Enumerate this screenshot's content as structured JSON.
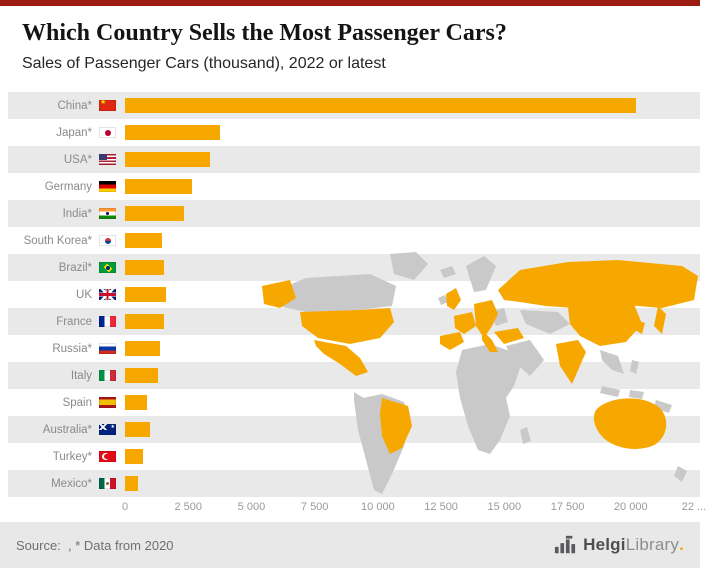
{
  "chart_data": {
    "type": "bar",
    "orientation": "horizontal",
    "title": "Which Country Sells the Most Passenger Cars?",
    "subtitle": "Sales of Passenger Cars (thousand), 2022 or latest",
    "categories": [
      "China*",
      "Japan*",
      "USA*",
      "Germany",
      "India*",
      "South Korea*",
      "Brazil*",
      "UK",
      "France",
      "Russia*",
      "Italy",
      "Spain",
      "Australia*",
      "Turkey*",
      "Mexico*"
    ],
    "values": [
      20200,
      3750,
      3350,
      2650,
      2350,
      1480,
      1560,
      1610,
      1530,
      1390,
      1320,
      870,
      990,
      710,
      520
    ],
    "flags": [
      "cn",
      "jp",
      "us",
      "de",
      "in",
      "kr",
      "br",
      "gb",
      "fr",
      "ru",
      "it",
      "es",
      "au",
      "tr",
      "mx"
    ],
    "xlabel": "",
    "ylabel": "",
    "xlim": [
      0,
      22500
    ],
    "xticks": [
      {
        "value": 0,
        "label": "0"
      },
      {
        "value": 2500,
        "label": "2 500"
      },
      {
        "value": 5000,
        "label": "5 000"
      },
      {
        "value": 7500,
        "label": "7 500"
      },
      {
        "value": 10000,
        "label": "10 000"
      },
      {
        "value": 12500,
        "label": "12 500"
      },
      {
        "value": 15000,
        "label": "15 000"
      },
      {
        "value": 17500,
        "label": "17 500"
      },
      {
        "value": 20000,
        "label": "20 000"
      },
      {
        "value": 22500,
        "label": "22 ..."
      }
    ],
    "grid": false,
    "legend": "none",
    "value_unit": "thousand passenger cars",
    "bar_color": "#F6A800",
    "stripe_color": "#e9e9e9"
  },
  "map": {
    "base_color": "#c9c9c9",
    "highlight_color": "#F6A800",
    "highlighted_regions": [
      "USA (incl. Alaska)",
      "Mexico",
      "Brazil",
      "UK",
      "France",
      "Spain",
      "Central Europe",
      "Italy",
      "Russia",
      "Turkey",
      "India",
      "China",
      "South Korea",
      "Japan",
      "Australia"
    ]
  },
  "footer": {
    "source": "Source:  , * Data from 2020",
    "logo": {
      "part1": "Helgi",
      "part2": "Library",
      "dot": "."
    }
  },
  "colors": {
    "top_bar": "#9b1c10",
    "accent": "#F6A800",
    "footer_bg": "#e8e8e8",
    "stripe": "#e9e9e9",
    "label_text": "#8a8a8a"
  }
}
